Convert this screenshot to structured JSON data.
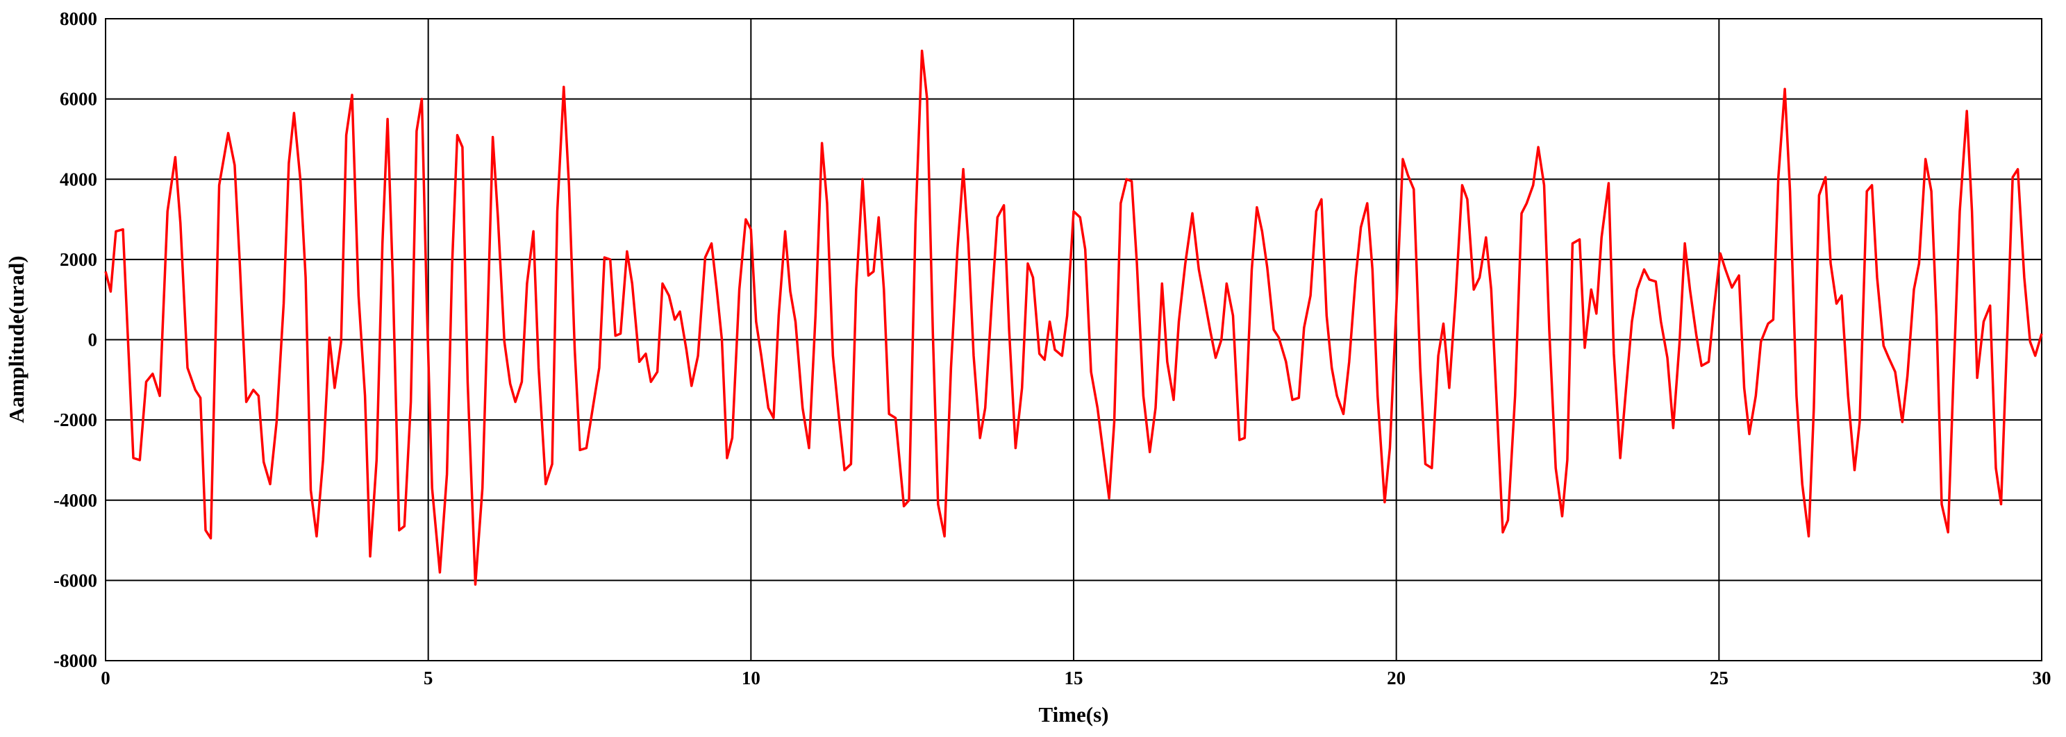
{
  "chart_data": {
    "type": "line",
    "xlabel": "Time(s)",
    "ylabel": "Aamplitude(urad)",
    "xlim": [
      0,
      30
    ],
    "xticks": [
      0,
      5,
      10,
      15,
      20,
      25,
      30
    ],
    "ylim": [
      -8000,
      8000
    ],
    "yticks": [
      -8000,
      -6000,
      -4000,
      -2000,
      0,
      2000,
      4000,
      6000,
      8000
    ],
    "grid": true,
    "series": [
      {
        "color": "#ff0000",
        "x": [
          0,
          0.08,
          0.16,
          0.27,
          0.43,
          0.53,
          0.63,
          0.73,
          0.84,
          0.96,
          1.08,
          1.16,
          1.27,
          1.39,
          1.47,
          1.55,
          1.63,
          1.76,
          1.9,
          2,
          2.08,
          2.18,
          2.29,
          2.37,
          2.45,
          2.55,
          2.65,
          2.76,
          2.84,
          2.92,
          3.02,
          3.1,
          3.18,
          3.27,
          3.37,
          3.47,
          3.55,
          3.65,
          3.73,
          3.82,
          3.92,
          4.02,
          4.1,
          4.2,
          4.29,
          4.37,
          4.45,
          4.55,
          4.63,
          4.73,
          4.82,
          4.9,
          4.98,
          5.06,
          5.18,
          5.29,
          5.37,
          5.45,
          5.53,
          5.61,
          5.73,
          5.84,
          5.92,
          6,
          6.08,
          6.18,
          6.27,
          6.35,
          6.45,
          6.53,
          6.63,
          6.71,
          6.82,
          6.92,
          7,
          7.1,
          7.18,
          7.27,
          7.35,
          7.45,
          7.55,
          7.65,
          7.73,
          7.82,
          7.9,
          7.98,
          8.08,
          8.16,
          8.27,
          8.37,
          8.45,
          8.55,
          8.63,
          8.73,
          8.82,
          8.9,
          9,
          9.08,
          9.18,
          9.29,
          9.39,
          9.47,
          9.55,
          9.63,
          9.71,
          9.82,
          9.92,
          10,
          10.08,
          10.16,
          10.27,
          10.35,
          10.43,
          10.53,
          10.61,
          10.69,
          10.8,
          10.9,
          11,
          11.1,
          11.18,
          11.27,
          11.37,
          11.45,
          11.55,
          11.63,
          11.73,
          11.82,
          11.9,
          11.98,
          12.06,
          12.14,
          12.24,
          12.37,
          12.45,
          12.55,
          12.65,
          12.73,
          12.82,
          12.9,
          13,
          13.1,
          13.2,
          13.29,
          13.37,
          13.45,
          13.55,
          13.63,
          13.73,
          13.82,
          13.92,
          14,
          14.1,
          14.2,
          14.29,
          14.37,
          14.47,
          14.55,
          14.63,
          14.71,
          14.82,
          14.9,
          15,
          15.1,
          15.18,
          15.27,
          15.37,
          15.45,
          15.55,
          15.63,
          15.73,
          15.82,
          15.9,
          15.98,
          16.08,
          16.18,
          16.27,
          16.37,
          16.45,
          16.55,
          16.63,
          16.73,
          16.84,
          16.94,
          17.04,
          17.12,
          17.2,
          17.29,
          17.37,
          17.47,
          17.57,
          17.65,
          17.76,
          17.84,
          17.92,
          18,
          18.1,
          18.18,
          18.29,
          18.39,
          18.49,
          18.57,
          18.67,
          18.76,
          18.84,
          18.92,
          19,
          19.08,
          19.18,
          19.27,
          19.37,
          19.45,
          19.55,
          19.63,
          19.71,
          19.82,
          19.9,
          20,
          20.1,
          20.18,
          20.27,
          20.37,
          20.45,
          20.55,
          20.65,
          20.73,
          20.82,
          20.92,
          21.02,
          21.1,
          21.2,
          21.29,
          21.39,
          21.47,
          21.55,
          21.65,
          21.73,
          21.84,
          21.94,
          22.02,
          22.12,
          22.2,
          22.29,
          22.37,
          22.47,
          22.57,
          22.65,
          22.73,
          22.84,
          22.92,
          23.02,
          23.1,
          23.18,
          23.29,
          23.37,
          23.47,
          23.55,
          23.65,
          23.73,
          23.84,
          23.92,
          24.02,
          24.1,
          24.2,
          24.29,
          24.39,
          24.47,
          24.55,
          24.65,
          24.73,
          24.84,
          24.92,
          25.02,
          25.1,
          25.2,
          25.31,
          25.39,
          25.47,
          25.57,
          25.65,
          25.76,
          25.84,
          25.92,
          26.02,
          26.1,
          26.2,
          26.29,
          26.39,
          26.47,
          26.55,
          26.65,
          26.73,
          26.82,
          26.9,
          27,
          27.1,
          27.18,
          27.29,
          27.37,
          27.45,
          27.55,
          27.63,
          27.73,
          27.84,
          27.92,
          28.02,
          28.1,
          28.2,
          28.29,
          28.37,
          28.45,
          28.55,
          28.63,
          28.73,
          28.84,
          28.92,
          29,
          29.1,
          29.2,
          29.29,
          29.37,
          29.47,
          29.55,
          29.63,
          29.73,
          29.82,
          29.9,
          30
        ],
        "values": [
          1700,
          1200,
          2700,
          2750,
          -2950,
          -3000,
          -1050,
          -850,
          -1400,
          3200,
          4550,
          2900,
          -700,
          -1250,
          -1450,
          -4750,
          -4950,
          3850,
          5150,
          4350,
          1900,
          -1550,
          -1250,
          -1400,
          -3050,
          -3600,
          -2050,
          900,
          4400,
          5650,
          3950,
          1550,
          -3750,
          -4900,
          -3000,
          50,
          -1200,
          -50,
          5100,
          6100,
          1100,
          -1400,
          -5400,
          -3000,
          2400,
          5500,
          1550,
          -4750,
          -4650,
          -1550,
          5200,
          6000,
          750,
          -3700,
          -5800,
          -3350,
          1900,
          5100,
          4800,
          -1050,
          -6100,
          -3700,
          600,
          5050,
          3050,
          -50,
          -1100,
          -1550,
          -1050,
          1400,
          2700,
          -700,
          -3600,
          -3100,
          3200,
          6300,
          3850,
          -250,
          -2750,
          -2700,
          -1700,
          -700,
          2050,
          2000,
          100,
          150,
          2200,
          1400,
          -550,
          -350,
          -1050,
          -800,
          1400,
          1100,
          500,
          700,
          -250,
          -1150,
          -400,
          2050,
          2400,
          1250,
          0,
          -2950,
          -2450,
          1250,
          3000,
          2750,
          450,
          -400,
          -1700,
          -1950,
          600,
          2700,
          1200,
          450,
          -1700,
          -2700,
          600,
          4900,
          3400,
          -400,
          -2050,
          -3250,
          -3100,
          1250,
          4000,
          1600,
          1700,
          3050,
          1250,
          -1850,
          -1950,
          -4150,
          -4000,
          2900,
          7200,
          6000,
          100,
          -4100,
          -4900,
          -700,
          2250,
          4250,
          2400,
          -400,
          -2450,
          -1700,
          900,
          3050,
          3350,
          250,
          -2700,
          -1200,
          1900,
          1550,
          -350,
          -500,
          450,
          -250,
          -400,
          600,
          3200,
          3050,
          2250,
          -800,
          -1700,
          -2700,
          -3950,
          -2050,
          3400,
          4000,
          3950,
          1900,
          -1400,
          -2800,
          -1700,
          1400,
          -550,
          -1500,
          450,
          1900,
          3150,
          1750,
          900,
          200,
          -450,
          0,
          1400,
          600,
          -2500,
          -2450,
          1750,
          3300,
          2700,
          1800,
          250,
          50,
          -550,
          -1500,
          -1450,
          300,
          1100,
          3200,
          3500,
          600,
          -700,
          -1400,
          -1850,
          -550,
          1550,
          2800,
          3400,
          1750,
          -1400,
          -4050,
          -2700,
          800,
          4500,
          4100,
          3750,
          -700,
          -3100,
          -3200,
          -400,
          400,
          -1200,
          1100,
          3850,
          3500,
          1250,
          1550,
          2550,
          1250,
          -1400,
          -4800,
          -4500,
          -1400,
          3150,
          3400,
          3850,
          4800,
          3850,
          250,
          -3200,
          -4400,
          -3000,
          2400,
          2500,
          -200,
          1250,
          650,
          2550,
          3900,
          -350,
          -2950,
          -1400,
          450,
          1250,
          1750,
          1500,
          1450,
          450,
          -450,
          -2200,
          -50,
          2400,
          1250,
          100,
          -650,
          -550,
          750,
          2150,
          1750,
          1300,
          1600,
          -1200,
          -2350,
          -1400,
          -50,
          400,
          500,
          4050,
          6250,
          3700,
          -1400,
          -3600,
          -4900,
          -1700,
          3600,
          4050,
          1900,
          900,
          1100,
          -1400,
          -3250,
          -2050,
          3700,
          3850,
          1550,
          -150,
          -450,
          -800,
          -2050,
          -900,
          1250,
          1900,
          4500,
          3700,
          600,
          -4100,
          -4800,
          -1050,
          3200,
          5700,
          3200,
          -950,
          450,
          850,
          -3200,
          -4100,
          250,
          4050,
          4250,
          1550,
          -50,
          -400,
          150
        ]
      }
    ]
  }
}
